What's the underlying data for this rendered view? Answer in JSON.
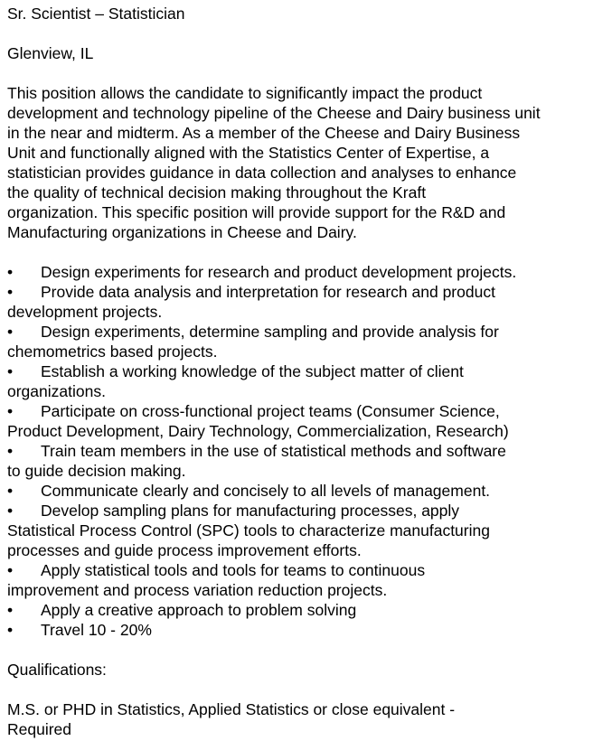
{
  "job": {
    "title": "Sr. Scientist – Statistician",
    "location": "Glenview, IL",
    "description_lines": [
      "This position allows the candidate to significantly impact the product",
      "development and technology pipeline of the Cheese and Dairy business unit",
      "in the near and midterm.  As a member of the Cheese and Dairy Business",
      "Unit and functionally aligned with the Statistics Center of Expertise, a",
      "statistician provides guidance in data collection and analyses to enhance",
      "the quality of technical decision making throughout the Kraft",
      "organization.  This specific position will provide support for the R&D and",
      "Manufacturing organizations in Cheese and Dairy."
    ],
    "bullet_symbol": "•",
    "responsibilities": [
      {
        "first": "Design experiments for research and product development projects.",
        "rest": []
      },
      {
        "first": "Provide data analysis and interpretation for research and product",
        "rest": [
          "development projects."
        ]
      },
      {
        "first": "Design experiments, determine sampling and provide analysis for",
        "rest": [
          "chemometrics based projects."
        ]
      },
      {
        "first": "Establish a working knowledge of the subject matter of client",
        "rest": [
          "organizations."
        ]
      },
      {
        "first": "Participate on cross-functional project teams (Consumer Science,",
        "rest": [
          "Product Development, Dairy Technology, Commercialization, Research)"
        ]
      },
      {
        "first": "Train team members in the use of statistical methods and software",
        "rest": [
          "to guide decision making."
        ]
      },
      {
        "first": "Communicate clearly and concisely to all levels of management.",
        "rest": []
      },
      {
        "first": "Develop sampling plans for manufacturing processes, apply",
        "rest": [
          "Statistical Process Control (SPC) tools to characterize manufacturing",
          "processes and guide process improvement efforts."
        ]
      },
      {
        "first": "Apply statistical tools and tools for teams to continuous",
        "rest": [
          "improvement and process variation reduction projects."
        ]
      },
      {
        "first": "Apply a creative approach to problem solving",
        "rest": []
      },
      {
        "first": "Travel 10 - 20%",
        "rest": []
      }
    ],
    "qualifications_heading": "Qualifications:",
    "qualification_lines": [
      "M.S. or PHD in Statistics, Applied Statistics or close equivalent -",
      "Required"
    ]
  }
}
